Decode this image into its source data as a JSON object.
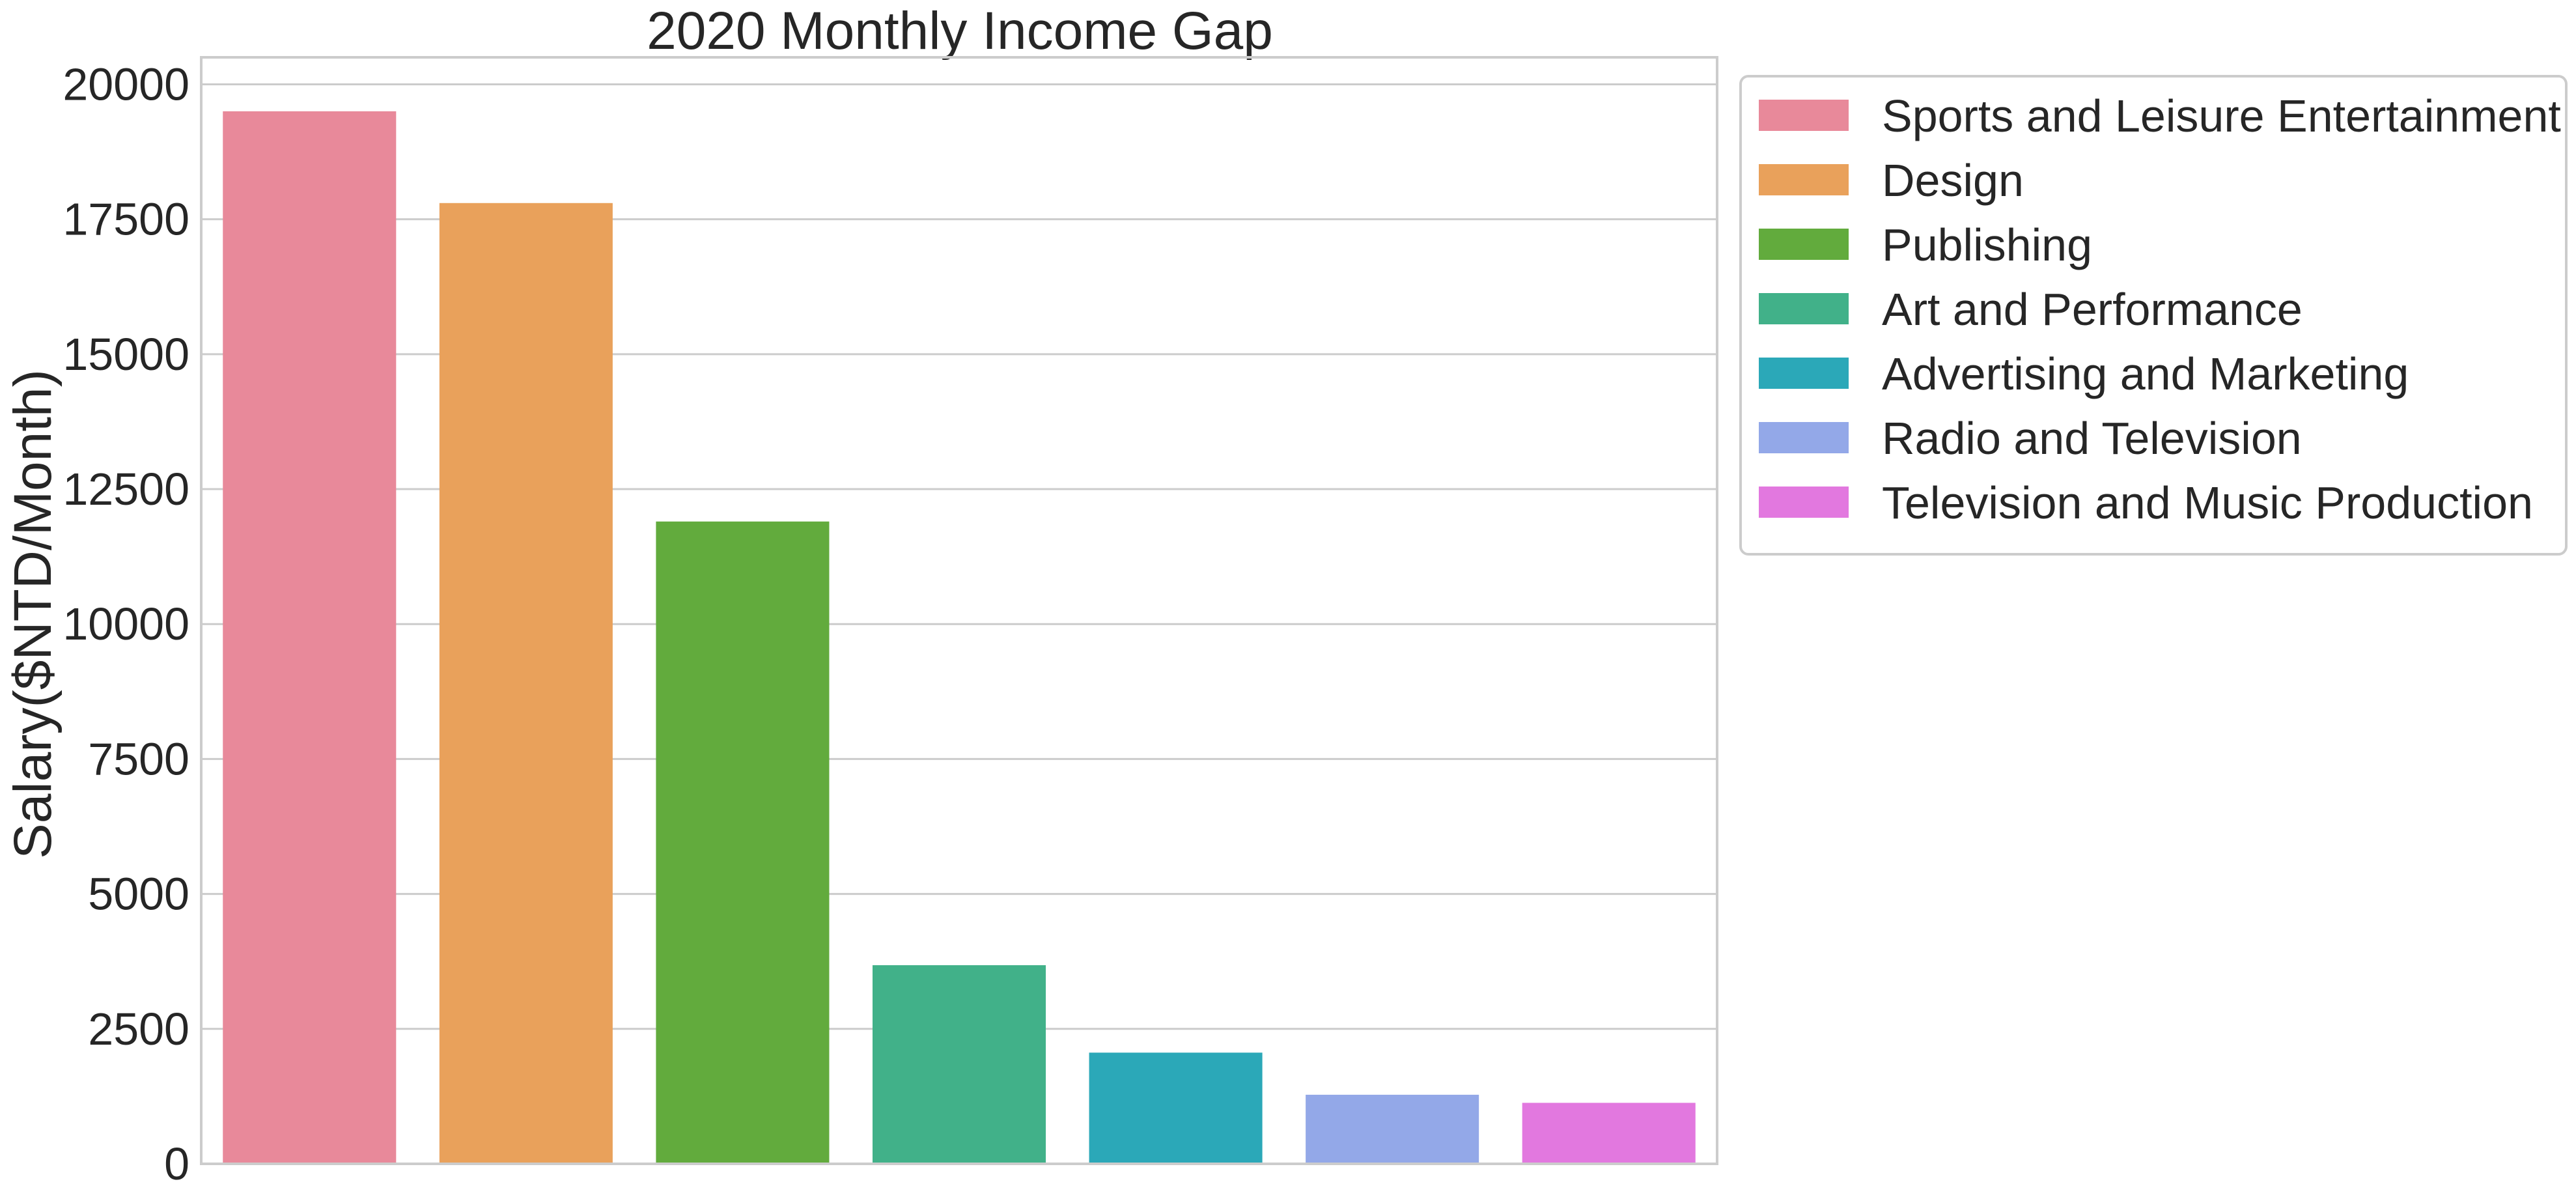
{
  "chart_data": {
    "type": "bar",
    "title": "2020 Monthly Income Gap",
    "xlabel": "",
    "ylabel": "Salary($NTD/Month)",
    "ylim": [
      0,
      20500
    ],
    "yticks": [
      0,
      2500,
      5000,
      7500,
      10000,
      12500,
      15000,
      17500,
      20000
    ],
    "grid": true,
    "legend_position": "outside-upper-right",
    "categories": [
      "Sports and Leisure Entertainment",
      "Design",
      "Publishing",
      "Art and Performance",
      "Advertising and Marketing",
      "Radio and Television",
      "Television and Music Production"
    ],
    "values": [
      19500,
      17800,
      11900,
      3680,
      2060,
      1280,
      1130
    ],
    "colors": [
      "#e8899a",
      "#e9a15b",
      "#62ab3d",
      "#41b189",
      "#2ba8b8",
      "#93a8e8",
      "#e278df"
    ]
  }
}
